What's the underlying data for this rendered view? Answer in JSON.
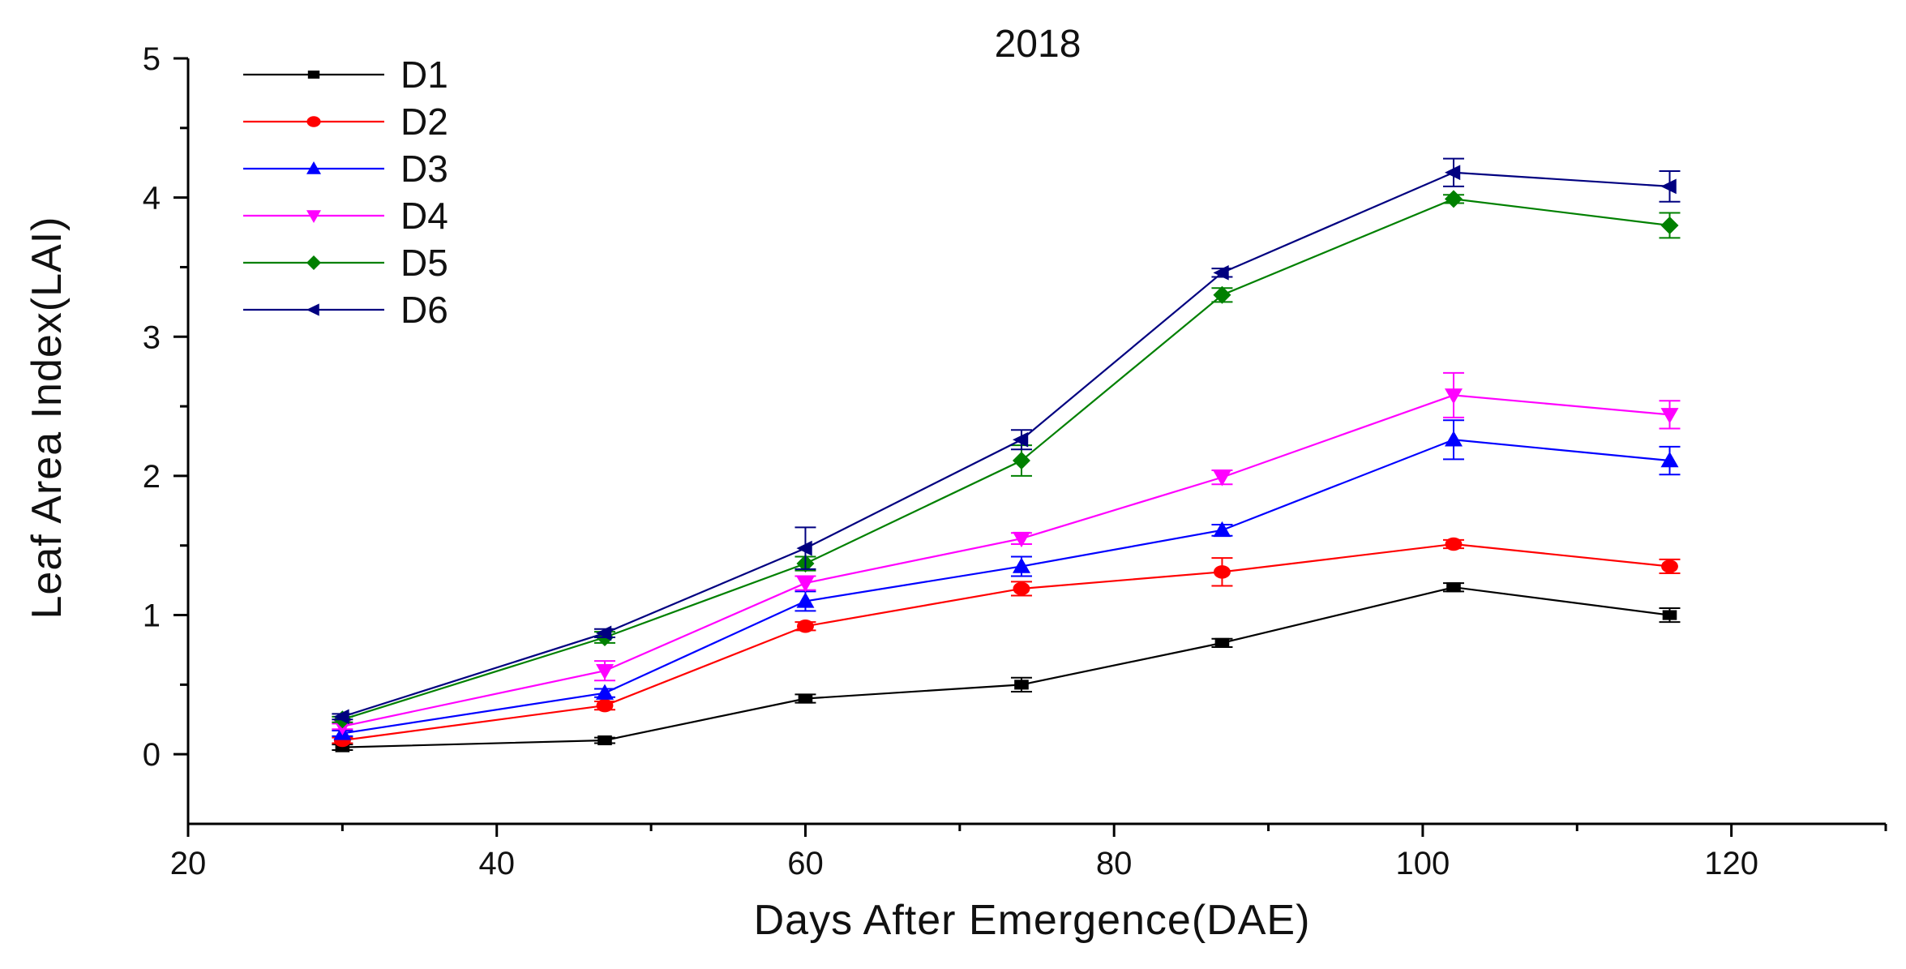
{
  "chart_data": {
    "type": "line",
    "title": "2018",
    "xlabel": "Days After Emergence(DAE)",
    "ylabel": "Leaf Area Index(LAI)",
    "xlim": [
      20,
      130
    ],
    "ylim": [
      -0.5,
      5
    ],
    "xticks": [
      20,
      40,
      60,
      80,
      100,
      120
    ],
    "yticks": [
      0,
      1,
      2,
      3,
      4,
      5
    ],
    "x": [
      30,
      47,
      60,
      74,
      87,
      102,
      116
    ],
    "legend_position": "top-left",
    "grid": false,
    "series": [
      {
        "name": "D1",
        "color": "#000000",
        "marker": "square",
        "values": [
          0.05,
          0.1,
          0.4,
          0.5,
          0.8,
          1.2,
          1.0
        ],
        "errors": [
          0.02,
          0.02,
          0.03,
          0.05,
          0.03,
          0.03,
          0.05
        ]
      },
      {
        "name": "D2",
        "color": "#ff0000",
        "marker": "circle",
        "values": [
          0.1,
          0.35,
          0.92,
          1.19,
          1.31,
          1.51,
          1.35
        ],
        "errors": [
          0.02,
          0.03,
          0.03,
          0.05,
          0.1,
          0.03,
          0.05
        ]
      },
      {
        "name": "D3",
        "color": "#0000ff",
        "marker": "triangle-up",
        "values": [
          0.15,
          0.44,
          1.1,
          1.35,
          1.61,
          2.26,
          2.11
        ],
        "errors": [
          0.02,
          0.03,
          0.07,
          0.07,
          0.04,
          0.14,
          0.1
        ]
      },
      {
        "name": "D4",
        "color": "#ff00ff",
        "marker": "triangle-down",
        "values": [
          0.2,
          0.6,
          1.23,
          1.55,
          1.99,
          2.58,
          2.44
        ],
        "errors": [
          0.02,
          0.07,
          0.05,
          0.04,
          0.05,
          0.16,
          0.1
        ]
      },
      {
        "name": "D5",
        "color": "#008000",
        "marker": "diamond",
        "values": [
          0.25,
          0.84,
          1.37,
          2.11,
          3.3,
          3.99,
          3.8
        ],
        "errors": [
          0.02,
          0.04,
          0.05,
          0.11,
          0.05,
          0.03,
          0.09
        ]
      },
      {
        "name": "D6",
        "color": "#000080",
        "marker": "triangle-left",
        "values": [
          0.27,
          0.87,
          1.48,
          2.26,
          3.46,
          4.18,
          4.08
        ],
        "errors": [
          0.02,
          0.03,
          0.15,
          0.07,
          0.03,
          0.1,
          0.11
        ]
      }
    ]
  }
}
